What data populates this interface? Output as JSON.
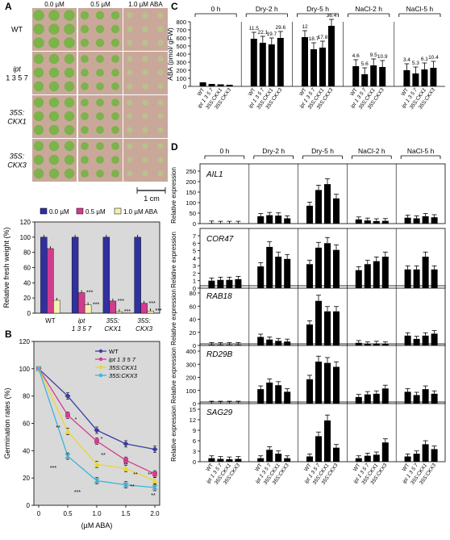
{
  "panels": {
    "A": "A",
    "B": "B",
    "C": "C",
    "D": "D"
  },
  "panel_a_photos": {
    "col_headers": [
      "0.0 µM",
      "0.5 µM",
      "1.0 µM ABA"
    ],
    "row_labels": [
      "WT",
      "ipt 1 3 5 7",
      "35S: CKX1",
      "35S: CKX3"
    ],
    "scale_bar": "1 cm"
  },
  "chart_data": [
    {
      "type": "bar",
      "panel": "A",
      "categories": [
        "WT",
        "ipt 1 3 5 7",
        "35S: CKX1",
        "35S: CKX3"
      ],
      "series": [
        {
          "name": "0.0 µM",
          "color": "#3030a0",
          "values": [
            100,
            100,
            100,
            100
          ]
        },
        {
          "name": "0.5 µM",
          "color": "#d23c8c",
          "values": [
            85,
            27,
            16,
            13
          ]
        },
        {
          "name": "1.0 µM ABA",
          "color": "#f4f0b0",
          "values": [
            17,
            11,
            2,
            3
          ]
        }
      ],
      "annotations": [
        "***",
        "***",
        "***",
        "***",
        "***",
        "***"
      ],
      "ylabel": "Relative fresh weight (%)",
      "ylim": [
        0,
        120
      ],
      "yticks": [
        0,
        20,
        40,
        60,
        80,
        100,
        120
      ],
      "legend": "top",
      "background": "#d9d9d9"
    },
    {
      "type": "line",
      "panel": "B",
      "x": [
        0,
        0.5,
        1.0,
        1.5,
        2.0
      ],
      "xticks": [
        "0",
        "0.5",
        "1.0",
        "1.5",
        "2.0"
      ],
      "series": [
        {
          "name": "WT",
          "color": "#3c3ca0",
          "marker": "diamond",
          "values": [
            100,
            80,
            55,
            45,
            41
          ]
        },
        {
          "name": "ipt 1 3 5 7",
          "color": "#d23c8c",
          "marker": "square",
          "values": [
            100,
            66,
            47,
            33,
            23
          ]
        },
        {
          "name": "35S:CKX1",
          "color": "#e8d830",
          "marker": "triangle",
          "values": [
            100,
            54,
            30,
            27,
            18
          ]
        },
        {
          "name": "35S:CKX3",
          "color": "#3cb4d8",
          "marker": "x",
          "values": [
            100,
            36,
            18,
            15,
            13
          ]
        }
      ],
      "annotations": [
        "*",
        "**",
        "***",
        "*",
        "**",
        "***",
        "**",
        "**",
        "**",
        "**",
        "**"
      ],
      "xlabel": "(µM ABA)",
      "ylabel": "Germination rates (%)",
      "ylim": [
        0,
        120
      ],
      "yticks": [
        0,
        20,
        40,
        60,
        80,
        100,
        120
      ],
      "legend": "top-right",
      "background": "#d9d9d9"
    },
    {
      "type": "bar",
      "panel": "C",
      "groups": [
        "0 h",
        "Dry-2 h",
        "Dry-5 h",
        "NaCl-2 h",
        "NaCl-5 h"
      ],
      "categories": [
        "WT",
        "ipt 1 3 5 7",
        "35S:CKX1",
        "35S:CKX3"
      ],
      "values": [
        [
          50,
          30,
          25,
          20
        ],
        [
          590,
          540,
          520,
          600
        ],
        [
          610,
          460,
          480,
          750
        ],
        [
          250,
          150,
          260,
          240
        ],
        [
          200,
          160,
          210,
          230
        ]
      ],
      "bar_labels": [
        [
          "",
          "",
          "",
          ""
        ],
        [
          "11.5",
          "22.1",
          "19.7",
          "29.6"
        ],
        [
          "12",
          "18.7",
          "17.8",
          "36.4"
        ],
        [
          "4.6",
          "5.6",
          "9.5",
          "10.9"
        ],
        [
          "3.4",
          "5.3",
          "6.1",
          "10.4"
        ]
      ],
      "ylabel": "ABA (pmol/ gFW)",
      "ylim": [
        0,
        800
      ],
      "yticks": [
        0,
        100,
        200,
        300,
        400,
        500,
        600,
        700,
        800
      ]
    },
    {
      "type": "bar",
      "panel": "D",
      "groups": [
        "0 h",
        "Dry-2 h",
        "Dry-5 h",
        "NaCl-2 h",
        "NaCl-5 h"
      ],
      "categories": [
        "WT",
        "ipt 1 3 5 7",
        "35S:CKX1",
        "35S:CKX3"
      ],
      "ylabel": "Relative expression",
      "subplots": [
        {
          "gene": "AIL1",
          "ylim": [
            0,
            250
          ],
          "yticks": [
            0,
            50,
            100,
            150,
            200,
            250
          ],
          "values": [
            [
              2,
              1,
              1,
              1
            ],
            [
              35,
              40,
              38,
              25
            ],
            [
              85,
              160,
              188,
              120
            ],
            [
              20,
              15,
              12,
              13
            ],
            [
              28,
              25,
              35,
              30
            ]
          ]
        },
        {
          "gene": "COR47",
          "ylim": [
            0,
            7
          ],
          "yticks": [
            0,
            1,
            2,
            3,
            4,
            5,
            6,
            7
          ],
          "values": [
            [
              1.0,
              1.1,
              1.1,
              1.2
            ],
            [
              2.9,
              5.5,
              4.2,
              3.9
            ],
            [
              3.2,
              5.4,
              6.0,
              5.1
            ],
            [
              2.4,
              3.2,
              3.6,
              4.2
            ],
            [
              2.5,
              2.5,
              4.2,
              2.5
            ]
          ]
        },
        {
          "gene": "RAB18",
          "ylim": [
            0,
            80
          ],
          "yticks": [
            0,
            20,
            40,
            60,
            80
          ],
          "values": [
            [
              1,
              1,
              1,
              1
            ],
            [
              13,
              9,
              7,
              6
            ],
            [
              32,
              68,
              52,
              52
            ],
            [
              4,
              2,
              3,
              2
            ],
            [
              15,
              10,
              15,
              18
            ]
          ]
        },
        {
          "gene": "RD29B",
          "ylim": [
            0,
            400
          ],
          "yticks": [
            0,
            100,
            200,
            300,
            400
          ],
          "values": [
            [
              2,
              2,
              2,
              2
            ],
            [
              110,
              160,
              140,
              90
            ],
            [
              185,
              320,
              310,
              280
            ],
            [
              50,
              70,
              75,
              115
            ],
            [
              90,
              65,
              110,
              75
            ]
          ]
        },
        {
          "gene": "SAG29",
          "ylim": [
            0,
            15
          ],
          "yticks": [
            0,
            3,
            6,
            9,
            12,
            15
          ],
          "values": [
            [
              1,
              0.8,
              0.7,
              0.8
            ],
            [
              1.0,
              3.4,
              2.3,
              1.0
            ],
            [
              1.5,
              7.3,
              11.8,
              4.0
            ],
            [
              1.0,
              1.7,
              2.0,
              5.5
            ],
            [
              1.5,
              2.3,
              5.0,
              3.6
            ]
          ]
        }
      ]
    }
  ]
}
